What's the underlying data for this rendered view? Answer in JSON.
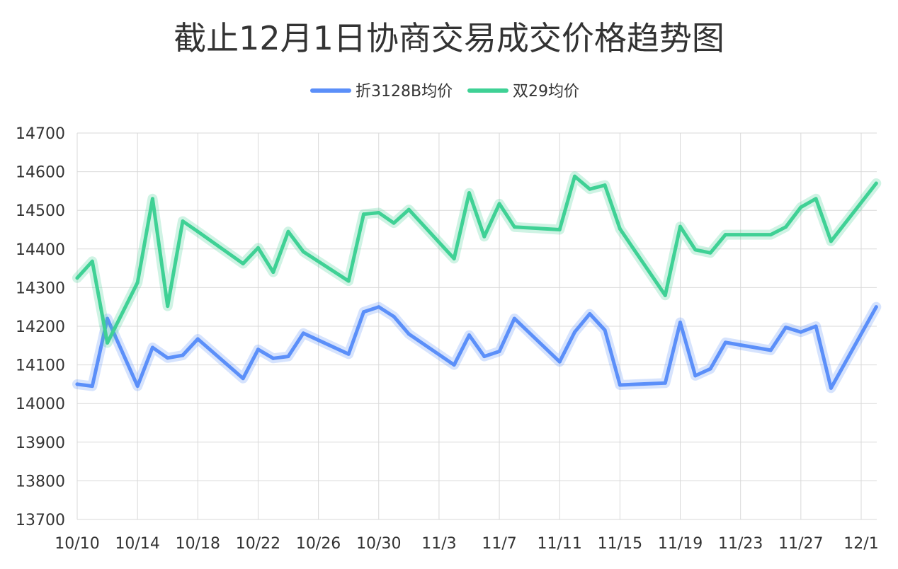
{
  "chart_data": {
    "type": "line",
    "title": "截止12月1日协商交易成交价格趋势图",
    "xlabel": "",
    "ylabel": "",
    "ylim": [
      13700,
      14700
    ],
    "yticks": [
      14700,
      14600,
      14500,
      14400,
      14300,
      14200,
      14100,
      14000,
      13900,
      13800,
      13700
    ],
    "xtick_labels": [
      "10/10",
      "10/14",
      "10/18",
      "10/22",
      "10/26",
      "10/30",
      "11/3",
      "11/7",
      "11/11",
      "11/15",
      "11/19",
      "11/23",
      "11/27",
      "12/1"
    ],
    "grid": true,
    "legend_position": "top",
    "series": [
      {
        "name": "折3128B均价",
        "color": "#5b8ff9",
        "points": [
          [
            "10/10",
            14050
          ],
          [
            "10/11",
            14045
          ],
          [
            "10/12",
            14220
          ],
          [
            "10/14",
            14045
          ],
          [
            "10/15",
            14145
          ],
          [
            "10/16",
            14118
          ],
          [
            "10/17",
            14125
          ],
          [
            "10/18",
            14167
          ],
          [
            "10/21",
            14065
          ],
          [
            "10/22",
            14140
          ],
          [
            "10/23",
            14117
          ],
          [
            "10/24",
            14122
          ],
          [
            "10/25",
            14182
          ],
          [
            "10/28",
            14128
          ],
          [
            "10/29",
            14237
          ],
          [
            "10/30",
            14250
          ],
          [
            "10/31",
            14225
          ],
          [
            "11/1",
            14180
          ],
          [
            "11/4",
            14100
          ],
          [
            "11/5",
            14177
          ],
          [
            "11/6",
            14122
          ],
          [
            "11/7",
            14135
          ],
          [
            "11/8",
            14220
          ],
          [
            "11/11",
            14108
          ],
          [
            "11/12",
            14185
          ],
          [
            "11/13",
            14232
          ],
          [
            "11/14",
            14190
          ],
          [
            "11/15",
            14048
          ],
          [
            "11/18",
            14053
          ],
          [
            "11/19",
            14210
          ],
          [
            "11/20",
            14072
          ],
          [
            "11/21",
            14090
          ],
          [
            "11/22",
            14158
          ],
          [
            "11/25",
            14138
          ],
          [
            "11/26",
            14197
          ],
          [
            "11/27",
            14185
          ],
          [
            "11/28",
            14200
          ],
          [
            "11/29",
            14040
          ],
          [
            "12/2",
            14250
          ]
        ]
      },
      {
        "name": "双29均价",
        "color": "#3fd195",
        "points": [
          [
            "10/10",
            14325
          ],
          [
            "10/11",
            14368
          ],
          [
            "10/12",
            14157
          ],
          [
            "10/14",
            14313
          ],
          [
            "10/15",
            14530
          ],
          [
            "10/16",
            14252
          ],
          [
            "10/17",
            14472
          ],
          [
            "10/18",
            14445
          ],
          [
            "10/21",
            14362
          ],
          [
            "10/22",
            14403
          ],
          [
            "10/23",
            14340
          ],
          [
            "10/24",
            14445
          ],
          [
            "10/25",
            14393
          ],
          [
            "10/28",
            14317
          ],
          [
            "10/29",
            14490
          ],
          [
            "10/30",
            14494
          ],
          [
            "10/31",
            14467
          ],
          [
            "11/1",
            14502
          ],
          [
            "11/4",
            14375
          ],
          [
            "11/5",
            14545
          ],
          [
            "11/6",
            14432
          ],
          [
            "11/7",
            14517
          ],
          [
            "11/8",
            14457
          ],
          [
            "11/11",
            14450
          ],
          [
            "11/12",
            14588
          ],
          [
            "11/13",
            14555
          ],
          [
            "11/14",
            14565
          ],
          [
            "11/15",
            14452
          ],
          [
            "11/18",
            14280
          ],
          [
            "11/19",
            14458
          ],
          [
            "11/20",
            14398
          ],
          [
            "11/21",
            14390
          ],
          [
            "11/22",
            14437
          ],
          [
            "11/25",
            14437
          ],
          [
            "11/26",
            14457
          ],
          [
            "11/27",
            14508
          ],
          [
            "11/28",
            14530
          ],
          [
            "11/29",
            14420
          ],
          [
            "12/2",
            14570
          ]
        ]
      }
    ]
  }
}
